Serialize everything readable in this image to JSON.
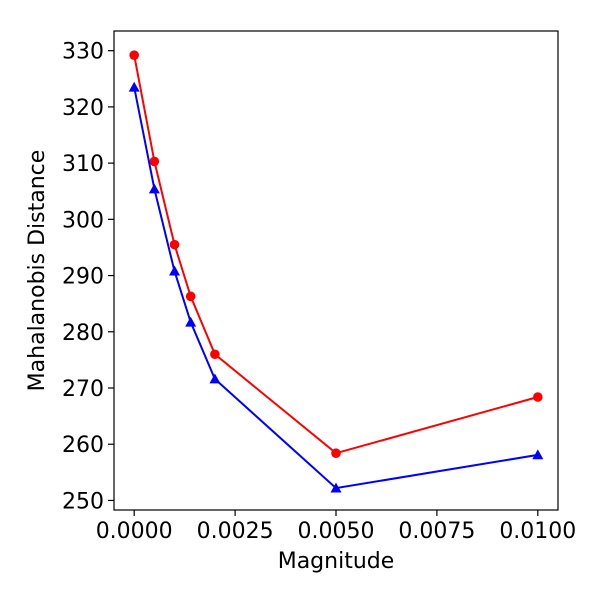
{
  "chart_data": {
    "type": "line",
    "title": "",
    "xlabel": "Magnitude",
    "ylabel": "Mahalanobis Distance",
    "xlim": [
      -0.0005,
      0.0105
    ],
    "ylim": [
      248.3,
      333.5
    ],
    "xticks": [
      0.0,
      0.0025,
      0.005,
      0.0075,
      0.01
    ],
    "xtick_labels": [
      "0.0000",
      "0.0025",
      "0.0050",
      "0.0075",
      "0.0100"
    ],
    "yticks": [
      250,
      260,
      270,
      280,
      290,
      300,
      310,
      320,
      330
    ],
    "ytick_labels": [
      "250",
      "260",
      "270",
      "280",
      "290",
      "300",
      "310",
      "320",
      "330"
    ],
    "grid": false,
    "series": [
      {
        "name": "series-red",
        "color": "#ff0000",
        "marker": "circle",
        "x": [
          0.0,
          0.0005,
          0.001,
          0.0014,
          0.002,
          0.005,
          0.01
        ],
        "y": [
          329.2,
          310.3,
          295.5,
          286.3,
          276.0,
          258.4,
          268.4
        ]
      },
      {
        "name": "series-blue",
        "color": "#0000ff",
        "marker": "triangle",
        "x": [
          0.0,
          0.0005,
          0.001,
          0.0014,
          0.002,
          0.005,
          0.01
        ],
        "y": [
          323.5,
          305.4,
          290.8,
          281.7,
          271.6,
          252.2,
          258.1
        ]
      }
    ]
  }
}
